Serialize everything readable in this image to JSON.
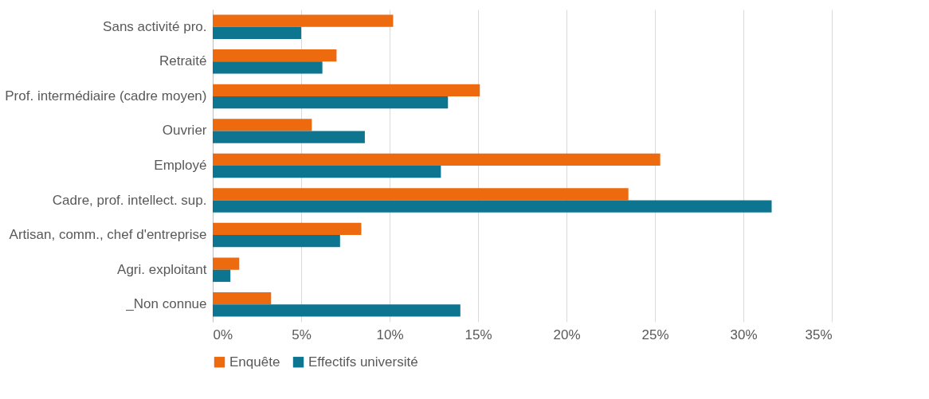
{
  "chart_data": {
    "type": "bar",
    "orientation": "horizontal",
    "categories": [
      "Sans activité pro.",
      "Retraité",
      "Prof. intermédiaire (cadre moyen)",
      "Ouvrier",
      "Employé",
      "Cadre, prof. intellect. sup.",
      "Artisan, comm., chef d'entreprise",
      "Agri. exploitant",
      "_Non connue"
    ],
    "series": [
      {
        "name": "Enquête",
        "color": "#ed6a0e",
        "values": [
          10.2,
          7.0,
          15.1,
          5.6,
          25.3,
          23.5,
          8.4,
          1.5,
          3.3
        ]
      },
      {
        "name": "Effectifs université",
        "color": "#0e7591",
        "values": [
          5.0,
          6.2,
          13.3,
          8.6,
          12.9,
          31.6,
          7.2,
          1.0,
          14.0
        ]
      }
    ],
    "xlim": [
      0,
      35
    ],
    "xticks": [
      {
        "value": 0,
        "label": "0%"
      },
      {
        "value": 5,
        "label": "5%"
      },
      {
        "value": 10,
        "label": "10%"
      },
      {
        "value": 15,
        "label": "15%"
      },
      {
        "value": 20,
        "label": "20%"
      },
      {
        "value": 25,
        "label": "25%"
      },
      {
        "value": 30,
        "label": "30%"
      },
      {
        "value": 35,
        "label": "35%"
      }
    ],
    "grid": "x",
    "legend": "bottom"
  }
}
